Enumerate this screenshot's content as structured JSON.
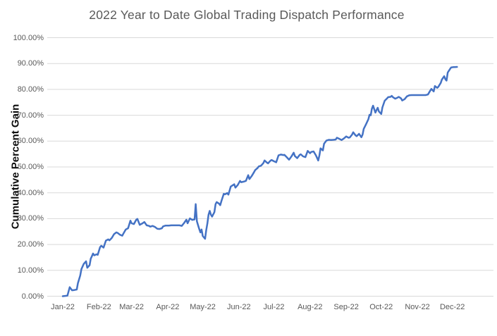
{
  "colors": {
    "line": "#4472C4",
    "gridline": "#D9D9D9",
    "title_text": "#595959",
    "tick_text": "#595959",
    "ylabel_text": "#0d0d0d",
    "background": "#ffffff"
  },
  "chart_data": {
    "type": "line",
    "title": "2022 Year to Date Global Trading Dispatch Performance",
    "xlabel": "",
    "ylabel": "Cumulative Percent Gain",
    "ylim": [
      0,
      100
    ],
    "xlim_days": [
      0,
      365
    ],
    "grid": "horizontal",
    "legend": "none",
    "y_ticks": [
      {
        "label": "0.00%",
        "value": 0
      },
      {
        "label": "10.00%",
        "value": 10
      },
      {
        "label": "20.00%",
        "value": 20
      },
      {
        "label": "30.00%",
        "value": 30
      },
      {
        "label": "40.00%",
        "value": 40
      },
      {
        "label": "50.00%",
        "value": 50
      },
      {
        "label": "60.00%",
        "value": 60
      },
      {
        "label": "70.00%",
        "value": 70
      },
      {
        "label": "80.00%",
        "value": 80
      },
      {
        "label": "90.00%",
        "value": 90
      },
      {
        "label": "100.00%",
        "value": 100
      }
    ],
    "x_ticks": [
      {
        "label": "Jan-22",
        "day": 0
      },
      {
        "label": "Feb-22",
        "day": 31
      },
      {
        "label": "Mar-22",
        "day": 59
      },
      {
        "label": "Apr-22",
        "day": 90
      },
      {
        "label": "May-22",
        "day": 120
      },
      {
        "label": "Jun-22",
        "day": 151
      },
      {
        "label": "Jul-22",
        "day": 181
      },
      {
        "label": "Aug-22",
        "day": 212
      },
      {
        "label": "Sep-22",
        "day": 243
      },
      {
        "label": "Oct-22",
        "day": 273
      },
      {
        "label": "Nov-22",
        "day": 304
      },
      {
        "label": "Dec-22",
        "day": 334
      }
    ],
    "series": [
      {
        "name": "Cumulative Percent Gain",
        "points": [
          [
            0,
            0
          ],
          [
            2,
            0.1
          ],
          [
            4,
            0.2
          ],
          [
            6,
            3.5
          ],
          [
            8,
            2.3
          ],
          [
            10,
            2.4
          ],
          [
            12,
            2.6
          ],
          [
            13,
            5
          ],
          [
            15,
            8
          ],
          [
            16,
            10.5
          ],
          [
            18,
            12.5
          ],
          [
            20,
            13.5
          ],
          [
            21,
            11
          ],
          [
            23,
            12
          ],
          [
            24,
            14.5
          ],
          [
            25,
            15.5
          ],
          [
            26,
            16.5
          ],
          [
            27,
            15.8
          ],
          [
            29,
            16.2
          ],
          [
            30,
            16
          ],
          [
            32,
            19
          ],
          [
            33,
            19.5
          ],
          [
            35,
            18.8
          ],
          [
            37,
            21.5
          ],
          [
            39,
            22
          ],
          [
            40,
            21.6
          ],
          [
            42,
            22.5
          ],
          [
            44,
            24
          ],
          [
            46,
            24.7
          ],
          [
            47,
            24.5
          ],
          [
            49,
            23.8
          ],
          [
            51,
            23.4
          ],
          [
            52,
            24.2
          ],
          [
            54,
            25.8
          ],
          [
            56,
            26.3
          ],
          [
            58,
            29.2
          ],
          [
            59,
            28.2
          ],
          [
            61,
            27.9
          ],
          [
            63,
            29.6
          ],
          [
            64,
            29.9
          ],
          [
            66,
            27.6
          ],
          [
            68,
            28.1
          ],
          [
            70,
            28.7
          ],
          [
            72,
            27.4
          ],
          [
            74,
            27.2
          ],
          [
            75,
            26.9
          ],
          [
            77,
            27.2
          ],
          [
            79,
            26.8
          ],
          [
            81,
            26.1
          ],
          [
            83,
            26
          ],
          [
            85,
            26.3
          ],
          [
            86,
            27
          ],
          [
            88,
            27.3
          ],
          [
            91,
            27.3
          ],
          [
            93,
            27.4
          ],
          [
            95,
            27.4
          ],
          [
            98,
            27.4
          ],
          [
            100,
            27.4
          ],
          [
            102,
            27.2
          ],
          [
            104,
            28.3
          ],
          [
            106,
            29.6
          ],
          [
            107,
            28.2
          ],
          [
            109,
            30.1
          ],
          [
            111,
            29.5
          ],
          [
            113,
            29.7
          ],
          [
            114,
            35.6
          ],
          [
            115,
            29
          ],
          [
            116,
            27.4
          ],
          [
            117,
            26
          ],
          [
            118,
            24.7
          ],
          [
            119,
            25.8
          ],
          [
            120,
            23.3
          ],
          [
            122,
            22.2
          ],
          [
            123,
            25.5
          ],
          [
            124,
            28.2
          ],
          [
            125,
            31.5
          ],
          [
            126,
            33
          ],
          [
            127,
            31.5
          ],
          [
            128,
            30.8
          ],
          [
            130,
            32.5
          ],
          [
            131,
            35.6
          ],
          [
            132,
            36.4
          ],
          [
            134,
            35.8
          ],
          [
            135,
            35.2
          ],
          [
            136,
            36.8
          ],
          [
            138,
            39.6
          ],
          [
            139,
            39.4
          ],
          [
            141,
            39.9
          ],
          [
            142,
            39.3
          ],
          [
            144,
            42.4
          ],
          [
            145,
            42.7
          ],
          [
            147,
            43.3
          ],
          [
            148,
            42
          ],
          [
            150,
            43
          ],
          [
            152,
            44.6
          ],
          [
            153,
            44.1
          ],
          [
            155,
            44.3
          ],
          [
            157,
            44.6
          ],
          [
            159,
            46.8
          ],
          [
            160,
            45.3
          ],
          [
            162,
            46.5
          ],
          [
            164,
            48
          ],
          [
            165,
            48.8
          ],
          [
            167,
            49.6
          ],
          [
            168,
            50.2
          ],
          [
            170,
            50.5
          ],
          [
            172,
            51.5
          ],
          [
            173,
            52.5
          ],
          [
            175,
            51.7
          ],
          [
            176,
            51.4
          ],
          [
            178,
            52.4
          ],
          [
            179,
            52.7
          ],
          [
            181,
            52.2
          ],
          [
            183,
            51.8
          ],
          [
            185,
            54.5
          ],
          [
            187,
            54.8
          ],
          [
            189,
            54.6
          ],
          [
            190,
            54.7
          ],
          [
            192,
            53.8
          ],
          [
            194,
            52.8
          ],
          [
            196,
            54
          ],
          [
            198,
            55.5
          ],
          [
            199,
            54.2
          ],
          [
            201,
            53.4
          ],
          [
            203,
            54.6
          ],
          [
            204,
            54.9
          ],
          [
            206,
            54.1
          ],
          [
            208,
            53.8
          ],
          [
            210,
            56.2
          ],
          [
            212,
            55.3
          ],
          [
            213,
            55.8
          ],
          [
            215,
            56
          ],
          [
            217,
            54.5
          ],
          [
            219,
            52.5
          ],
          [
            220,
            54.5
          ],
          [
            221,
            57.2
          ],
          [
            223,
            56.4
          ],
          [
            224,
            59
          ],
          [
            226,
            60.2
          ],
          [
            228,
            60.5
          ],
          [
            230,
            60.4
          ],
          [
            232,
            60.5
          ],
          [
            234,
            60.6
          ],
          [
            235,
            61.3
          ],
          [
            237,
            60.9
          ],
          [
            239,
            60.4
          ],
          [
            241,
            61
          ],
          [
            243,
            61.8
          ],
          [
            245,
            61.3
          ],
          [
            246,
            61.4
          ],
          [
            248,
            62.5
          ],
          [
            249,
            63.4
          ],
          [
            251,
            62.2
          ],
          [
            252,
            61.9
          ],
          [
            254,
            62.8
          ],
          [
            256,
            61.5
          ],
          [
            257,
            62.5
          ],
          [
            258,
            64.7
          ],
          [
            260,
            66.5
          ],
          [
            262,
            68.5
          ],
          [
            263,
            70.2
          ],
          [
            264,
            70
          ],
          [
            265,
            72.5
          ],
          [
            266,
            73.7
          ],
          [
            268,
            71
          ],
          [
            269,
            72
          ],
          [
            270,
            72.9
          ],
          [
            271,
            71.5
          ],
          [
            273,
            70.5
          ],
          [
            274,
            73
          ],
          [
            276,
            75.6
          ],
          [
            278,
            76.5
          ],
          [
            279,
            77
          ],
          [
            281,
            77.1
          ],
          [
            282,
            77.5
          ],
          [
            283,
            77
          ],
          [
            285,
            76.4
          ],
          [
            287,
            76.8
          ],
          [
            288,
            77.1
          ],
          [
            290,
            76.5
          ],
          [
            291,
            75.7
          ],
          [
            293,
            76.2
          ],
          [
            295,
            77.3
          ],
          [
            297,
            77.7
          ],
          [
            299,
            77.8
          ],
          [
            302,
            77.8
          ],
          [
            304,
            77.8
          ],
          [
            307,
            77.8
          ],
          [
            309,
            77.8
          ],
          [
            311,
            77.8
          ],
          [
            313,
            78
          ],
          [
            315,
            79.5
          ],
          [
            316,
            80.2
          ],
          [
            318,
            79.2
          ],
          [
            319,
            81.3
          ],
          [
            321,
            80.6
          ],
          [
            322,
            81
          ],
          [
            324,
            82.5
          ],
          [
            325,
            83.8
          ],
          [
            327,
            85.1
          ],
          [
            328,
            83.9
          ],
          [
            329,
            83.4
          ],
          [
            330,
            86.5
          ],
          [
            332,
            87.9
          ],
          [
            333,
            88.5
          ],
          [
            335,
            88.6
          ],
          [
            336,
            88.6
          ],
          [
            338,
            88.7
          ]
        ]
      }
    ]
  }
}
